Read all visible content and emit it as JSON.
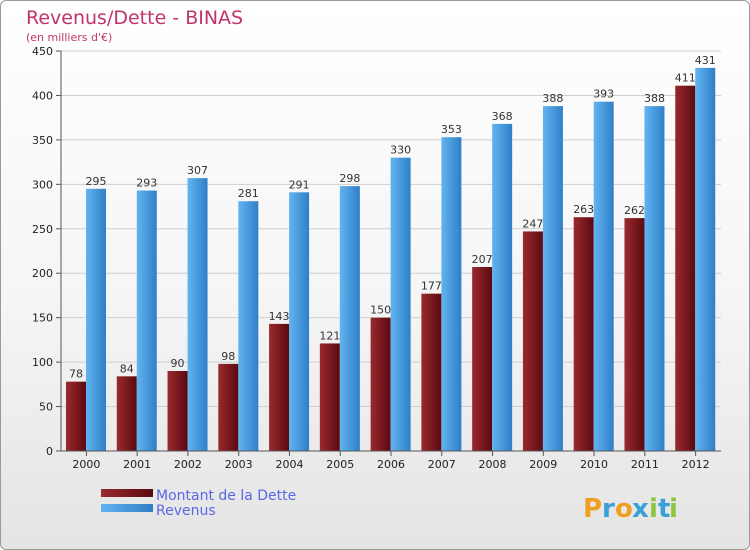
{
  "chart_data": {
    "type": "bar",
    "title": "Revenus/Dette - BINAS",
    "subtitle": "(en milliers d'€)",
    "categories": [
      "2000",
      "2001",
      "2002",
      "2003",
      "2004",
      "2005",
      "2006",
      "2007",
      "2008",
      "2009",
      "2010",
      "2011",
      "2012"
    ],
    "series": [
      {
        "name": "Montant de la Dette",
        "values": [
          78,
          84,
          90,
          98,
          143,
          121,
          150,
          177,
          207,
          247,
          263,
          262,
          411
        ],
        "color": "#7a1419"
      },
      {
        "name": "Revenus",
        "values": [
          295,
          293,
          307,
          281,
          291,
          298,
          330,
          353,
          368,
          388,
          393,
          388,
          431
        ],
        "color": "#4f9fe0"
      }
    ],
    "ylim": [
      0,
      450
    ],
    "yticks": [
      0,
      50,
      100,
      150,
      200,
      250,
      300,
      350,
      400,
      450
    ],
    "grid": true,
    "legend": "bottom-left"
  },
  "logo": {
    "letters": [
      "P",
      "r",
      "o",
      "x",
      "i",
      "t",
      "i"
    ],
    "colors": [
      "#f0a020",
      "#3aa0d8",
      "#f0a020",
      "#3aa0d8",
      "#8cc63f",
      "#3aa0d8",
      "#8cc63f"
    ]
  }
}
